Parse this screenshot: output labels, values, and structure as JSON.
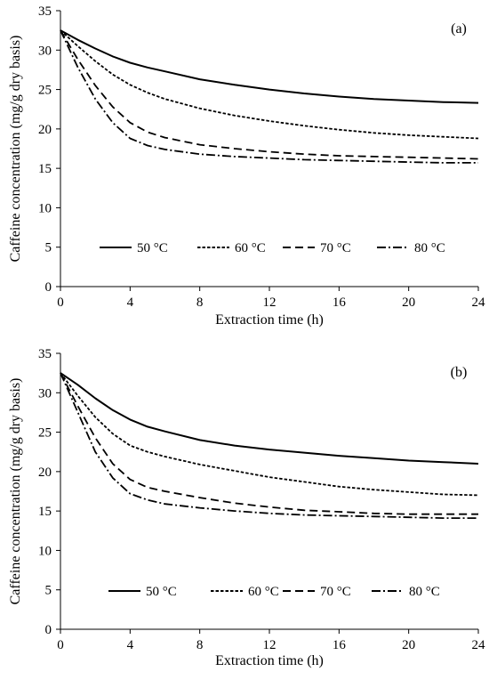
{
  "chart_data": [
    {
      "type": "line",
      "panel_label": "(a)",
      "xlabel": "Extraction time (h)",
      "ylabel": "Caffeine concentration (mg/g dry basis)",
      "xlim": [
        0,
        24
      ],
      "ylim": [
        0,
        35
      ],
      "xticks": [
        0,
        4,
        8,
        12,
        16,
        20,
        24
      ],
      "yticks": [
        0,
        5,
        10,
        15,
        20,
        25,
        30,
        35
      ],
      "grid": false,
      "legend_position": "bottom-center",
      "series": [
        {
          "name": "50 °C",
          "dash": "solid",
          "x": [
            0,
            1,
            2,
            3,
            4,
            5,
            6,
            8,
            10,
            12,
            14,
            16,
            18,
            20,
            22,
            24
          ],
          "y": [
            32.5,
            31.3,
            30.2,
            29.2,
            28.4,
            27.8,
            27.3,
            26.3,
            25.6,
            25.0,
            24.5,
            24.1,
            23.8,
            23.6,
            23.4,
            23.3
          ]
        },
        {
          "name": "60 °C",
          "dash": "dotted",
          "x": [
            0,
            1,
            2,
            3,
            4,
            5,
            6,
            8,
            10,
            12,
            14,
            16,
            18,
            20,
            22,
            24
          ],
          "y": [
            32.5,
            30.5,
            28.6,
            26.9,
            25.6,
            24.6,
            23.8,
            22.6,
            21.7,
            21.0,
            20.4,
            19.9,
            19.5,
            19.2,
            19.0,
            18.8
          ]
        },
        {
          "name": "70 °C",
          "dash": "dashed",
          "x": [
            0,
            1,
            2,
            3,
            4,
            5,
            6,
            8,
            10,
            12,
            14,
            16,
            18,
            20,
            22,
            24
          ],
          "y": [
            32.5,
            28.8,
            25.5,
            22.8,
            20.8,
            19.6,
            18.9,
            18.0,
            17.5,
            17.1,
            16.8,
            16.6,
            16.5,
            16.4,
            16.3,
            16.2
          ]
        },
        {
          "name": "80 °C",
          "dash": "dash-dot",
          "x": [
            0,
            1,
            2,
            3,
            4,
            5,
            6,
            8,
            10,
            12,
            14,
            16,
            18,
            20,
            22,
            24
          ],
          "y": [
            32.5,
            27.8,
            23.8,
            20.8,
            18.8,
            17.9,
            17.4,
            16.8,
            16.5,
            16.3,
            16.1,
            16.0,
            15.9,
            15.8,
            15.7,
            15.7
          ]
        }
      ]
    },
    {
      "type": "line",
      "panel_label": "(b)",
      "xlabel": "Extraction time (h)",
      "ylabel": "Caffeine concentration (mg/g dry basis)",
      "xlim": [
        0,
        24
      ],
      "ylim": [
        0,
        35
      ],
      "xticks": [
        0,
        4,
        8,
        12,
        16,
        20,
        24
      ],
      "yticks": [
        0,
        5,
        10,
        15,
        20,
        25,
        30,
        35
      ],
      "grid": false,
      "legend_position": "bottom-center",
      "series": [
        {
          "name": "50 °C",
          "dash": "solid",
          "x": [
            0,
            1,
            2,
            3,
            4,
            5,
            6,
            8,
            10,
            12,
            14,
            16,
            18,
            20,
            22,
            24
          ],
          "y": [
            32.5,
            31.0,
            29.3,
            27.8,
            26.6,
            25.7,
            25.1,
            24.0,
            23.3,
            22.8,
            22.4,
            22.0,
            21.7,
            21.4,
            21.2,
            21.0
          ]
        },
        {
          "name": "60 °C",
          "dash": "dotted",
          "x": [
            0,
            1,
            2,
            3,
            4,
            5,
            6,
            8,
            10,
            12,
            14,
            16,
            18,
            20,
            22,
            24
          ],
          "y": [
            32.5,
            29.6,
            26.9,
            24.8,
            23.3,
            22.5,
            21.9,
            20.9,
            20.1,
            19.3,
            18.7,
            18.1,
            17.7,
            17.4,
            17.1,
            17.0
          ]
        },
        {
          "name": "70 °C",
          "dash": "dashed",
          "x": [
            0,
            1,
            2,
            3,
            4,
            5,
            6,
            8,
            10,
            12,
            14,
            16,
            18,
            20,
            22,
            24
          ],
          "y": [
            32.5,
            28.3,
            24.3,
            21.0,
            19.0,
            18.0,
            17.5,
            16.7,
            16.0,
            15.5,
            15.1,
            14.9,
            14.7,
            14.6,
            14.6,
            14.6
          ]
        },
        {
          "name": "80 °C",
          "dash": "dash-dot",
          "x": [
            0,
            1,
            2,
            3,
            4,
            5,
            6,
            8,
            10,
            12,
            14,
            16,
            18,
            20,
            22,
            24
          ],
          "y": [
            32.5,
            27.5,
            22.5,
            19.2,
            17.2,
            16.4,
            15.9,
            15.4,
            15.0,
            14.7,
            14.5,
            14.4,
            14.3,
            14.2,
            14.1,
            14.1
          ]
        }
      ]
    }
  ]
}
